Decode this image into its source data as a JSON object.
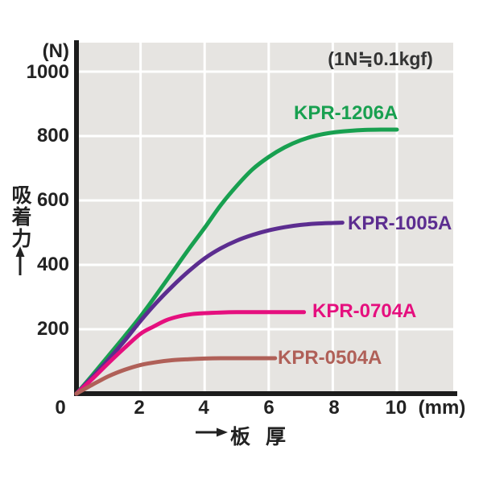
{
  "chart_data": {
    "type": "line",
    "title": "(1N≒0.1kgf)",
    "ylabel": "吸着力",
    "y_unit": "(N)",
    "xlabel": "板 厚",
    "x_unit": "(mm)",
    "origin_label": "0",
    "x_ticks": [
      2,
      4,
      6,
      8,
      10
    ],
    "y_ticks": [
      200,
      400,
      600,
      800,
      1000
    ],
    "xlim": [
      0,
      11.8
    ],
    "ylim": [
      0,
      1090
    ],
    "grid": "white gridlines on gray plot background",
    "legend_position": "labels at end of each curve",
    "plot_bg": "#e6e4e1",
    "grid_color": "#ffffff",
    "axis_color": "#1c1c1c",
    "series": [
      {
        "name": "KPR-1206A",
        "color": "#18a050",
        "points": [
          [
            0,
            0
          ],
          [
            0.5,
            58
          ],
          [
            1,
            118
          ],
          [
            1.5,
            178
          ],
          [
            2,
            240
          ],
          [
            2.5,
            308
          ],
          [
            3,
            378
          ],
          [
            3.5,
            448
          ],
          [
            4,
            515
          ],
          [
            4.5,
            585
          ],
          [
            5,
            645
          ],
          [
            5.5,
            697
          ],
          [
            6,
            735
          ],
          [
            6.5,
            765
          ],
          [
            7,
            787
          ],
          [
            7.5,
            802
          ],
          [
            8,
            811
          ],
          [
            8.5,
            816
          ],
          [
            9,
            819
          ],
          [
            9.5,
            820
          ],
          [
            10,
            820
          ]
        ]
      },
      {
        "name": "KPR-1005A",
        "color": "#5c2d90",
        "points": [
          [
            0,
            0
          ],
          [
            0.5,
            52
          ],
          [
            1,
            106
          ],
          [
            1.5,
            164
          ],
          [
            2,
            226
          ],
          [
            2.5,
            283
          ],
          [
            3,
            334
          ],
          [
            3.5,
            380
          ],
          [
            4,
            420
          ],
          [
            4.5,
            451
          ],
          [
            5,
            475
          ],
          [
            5.5,
            493
          ],
          [
            6,
            507
          ],
          [
            6.5,
            517
          ],
          [
            7,
            524
          ],
          [
            7.5,
            528
          ],
          [
            8,
            530
          ],
          [
            8.3,
            531
          ]
        ]
      },
      {
        "name": "KPR-0704A",
        "color": "#e50f7e",
        "points": [
          [
            0,
            0
          ],
          [
            0.5,
            46
          ],
          [
            1,
            95
          ],
          [
            1.5,
            142
          ],
          [
            2,
            186
          ],
          [
            2.4,
            208
          ],
          [
            2.8,
            228
          ],
          [
            3.2,
            240
          ],
          [
            3.6,
            247
          ],
          [
            4,
            250
          ],
          [
            4.5,
            252
          ],
          [
            5,
            253
          ],
          [
            5.5,
            253
          ],
          [
            6,
            253
          ],
          [
            6.5,
            253
          ],
          [
            7.1,
            253
          ]
        ]
      },
      {
        "name": "KPR-0504A",
        "color": "#b06058",
        "points": [
          [
            0,
            0
          ],
          [
            0.5,
            28
          ],
          [
            1,
            54
          ],
          [
            1.5,
            74
          ],
          [
            2,
            89
          ],
          [
            2.5,
            98
          ],
          [
            3,
            104
          ],
          [
            3.5,
            107
          ],
          [
            4,
            109
          ],
          [
            4.5,
            110
          ],
          [
            5,
            110
          ],
          [
            5.5,
            110
          ],
          [
            6.2,
            110
          ]
        ]
      }
    ]
  }
}
